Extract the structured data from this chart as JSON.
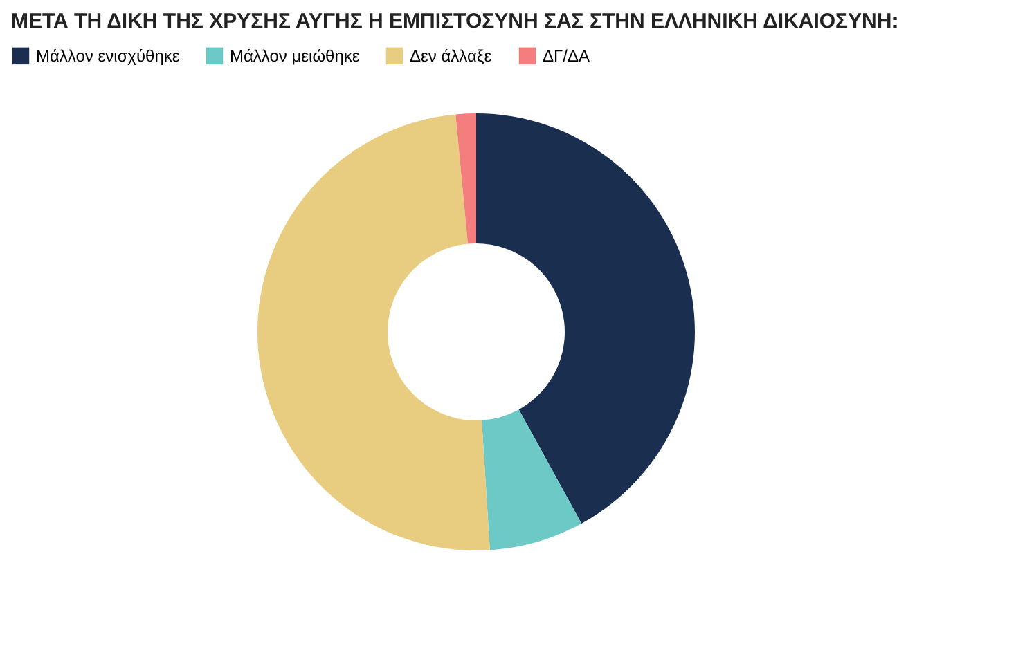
{
  "chart_data": {
    "type": "donut",
    "title": "ΜΕΤΑ ΤΗ ΔΙΚΗ ΤΗΣ ΧΡΥΣΗΣ ΑΥΓΗΣ Η ΕΜΠΙΣΤΟΣΥΝΗ ΣΑΣ ΣΤΗΝ ΕΛΛΗΝΙΚΗ ΔΙΚΑΙΟΣΥΝΗ:",
    "categories": [
      "Μάλλον ενισχύθηκε",
      "Μάλλον μειώθηκε",
      "Δεν άλλαξε",
      "ΔΓ/ΔΑ"
    ],
    "values": [
      42,
      7,
      49.5,
      1.5
    ],
    "colors": [
      "#1a2e50",
      "#6cc9c6",
      "#e8cc80",
      "#f47e7e"
    ],
    "legend": "top"
  }
}
